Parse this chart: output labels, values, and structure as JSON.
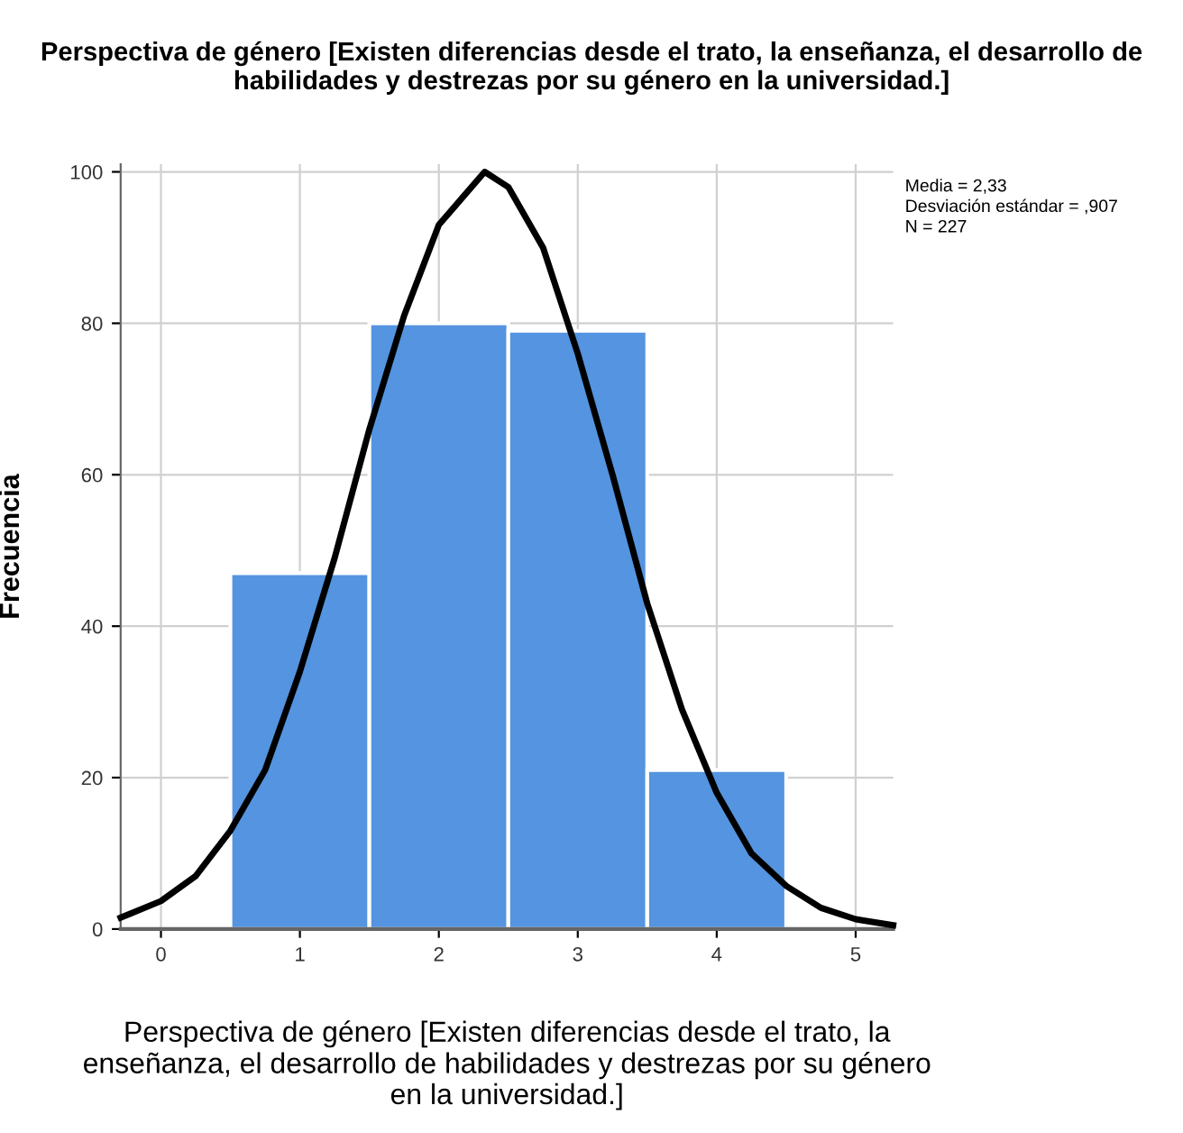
{
  "chart_data": {
    "type": "histogram",
    "title": "Perspectiva de género [Existen diferencias desde el trato, la enseñanza, el desarrollo de habilidades y destrezas por su género en la universidad.]",
    "xlabel": "Perspectiva de género [Existen diferencias desde el trato, la\nenseñanza, el desarrollo de habilidades y destrezas por su género\nen la universidad.]",
    "ylabel": "Frecuencia",
    "annotations": [
      "Media = 2,33",
      "Desviación estándar = ,907",
      "N = 227"
    ],
    "series": [
      {
        "color": "#5494e0",
        "bins": [
          0.5,
          1.5,
          2.5,
          3.5,
          4.5
        ],
        "values": [
          47,
          80,
          79,
          21
        ]
      },
      {
        "type": "line",
        "color": "#000000",
        "x": [
          -0.29,
          0,
          0.25,
          0.5,
          0.75,
          1,
          1.25,
          1.5,
          1.75,
          2,
          2.33,
          2.5,
          2.75,
          3,
          3.25,
          3.5,
          3.75,
          4,
          4.25,
          4.5,
          4.75,
          5,
          5.27
        ],
        "values": [
          1.5,
          3.7,
          7,
          13,
          21,
          34,
          49,
          66,
          81,
          93,
          100,
          98,
          90,
          76,
          60,
          43,
          29,
          18,
          10,
          5.7,
          2.8,
          1.3,
          0.5
        ]
      }
    ],
    "xlim": [
      -0.29,
      5.27
    ],
    "ylim": [
      0,
      101
    ],
    "xticks": [
      0,
      1,
      2,
      3,
      4,
      5
    ],
    "yticks": [
      0,
      20,
      40,
      60,
      80,
      100
    ],
    "grid": true,
    "marker": "none",
    "line_style": "solid"
  }
}
